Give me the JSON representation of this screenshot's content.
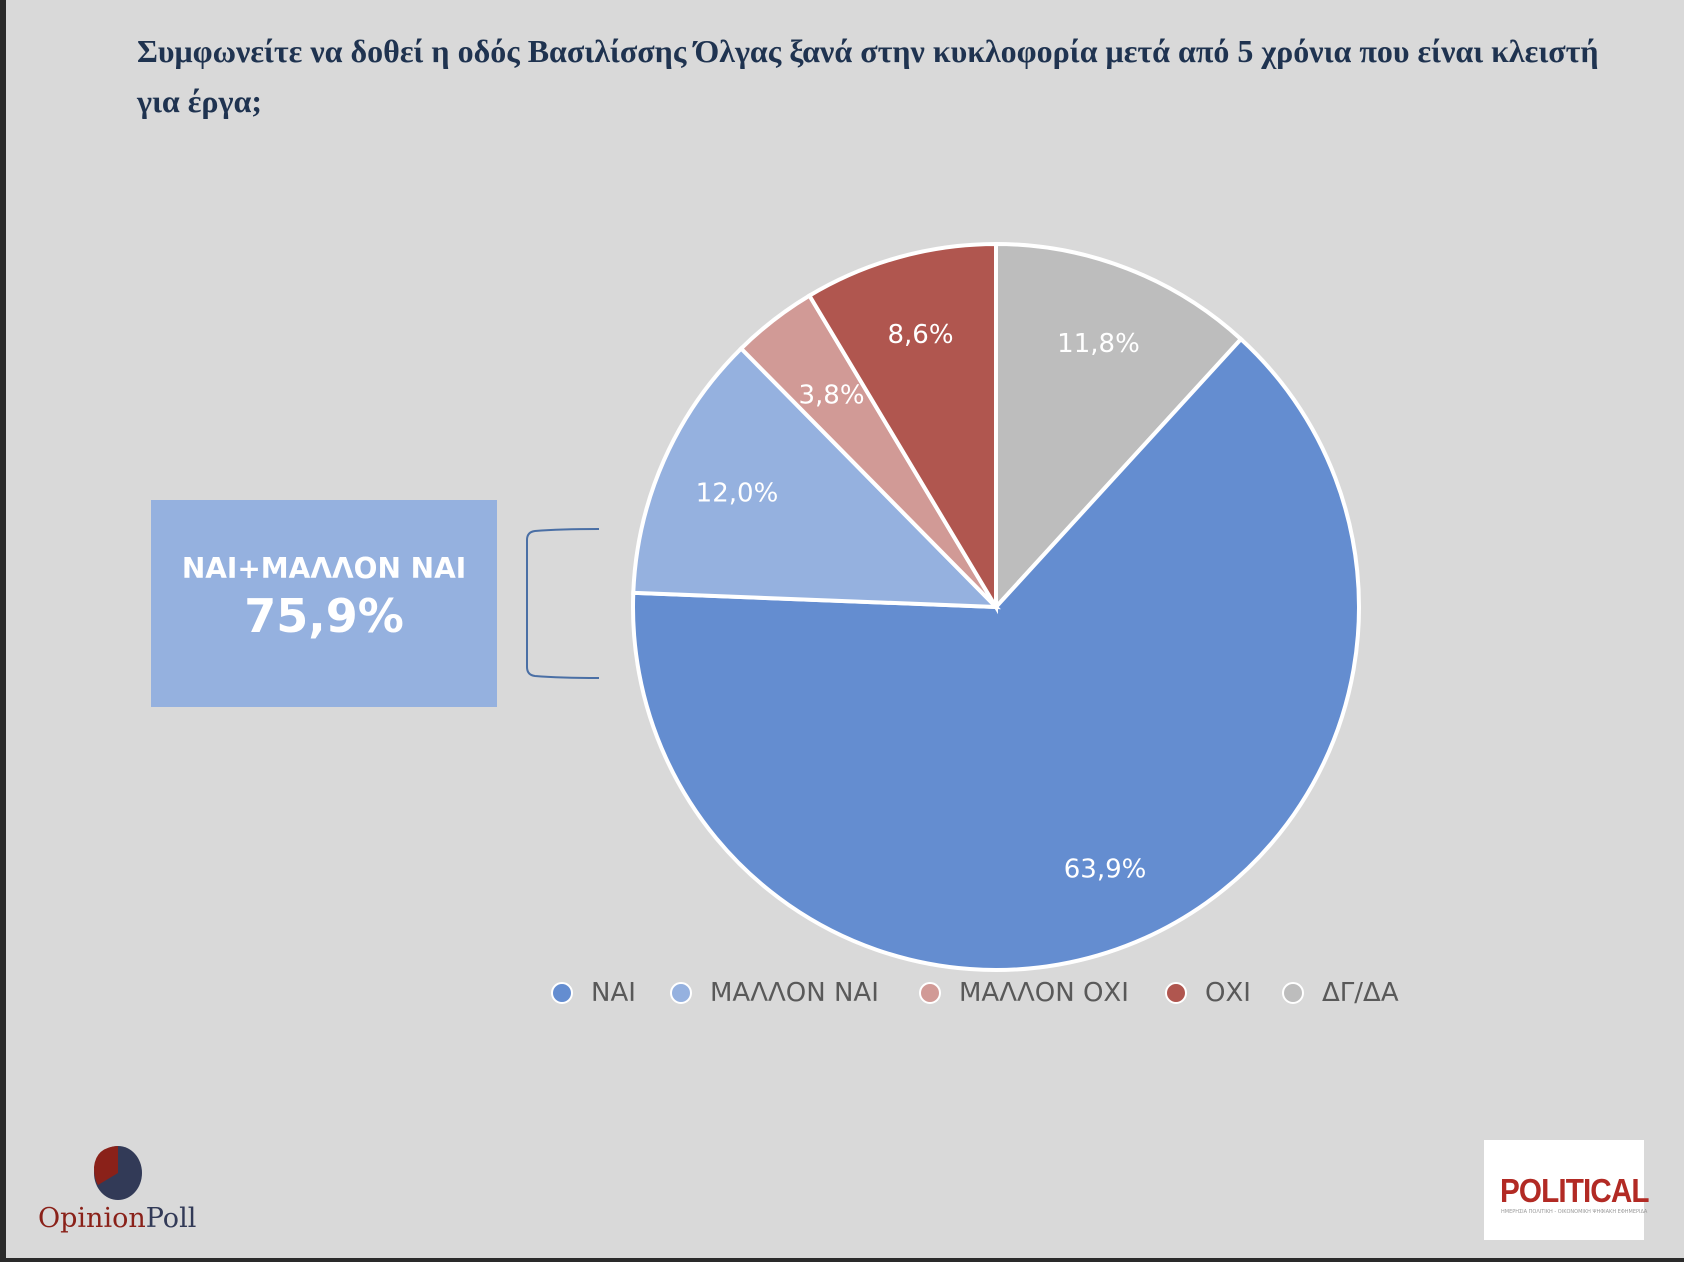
{
  "chart_data": {
    "type": "pie",
    "title": "Συμφωνείτε να δοθεί η οδός Βασιλίσσης Όλγας ξανά στην κυκλοφορία μετά από 5 χρόνια που είναι κλειστή για έργα;",
    "slices": [
      {
        "name": "ΔΓ/ΔΑ",
        "value": 11.8,
        "label": "11,8%",
        "color": "#bdbdbd"
      },
      {
        "name": "ΝΑΙ",
        "value": 63.9,
        "label": "63,9%",
        "color": "#648dd0"
      },
      {
        "name": "ΜΑΛΛΟΝ ΝΑΙ",
        "value": 12.0,
        "label": "12,0%",
        "color": "#95b1df"
      },
      {
        "name": "ΜΑΛΛΟΝ ΟΧΙ",
        "value": 3.8,
        "label": "3,8%",
        "color": "#d19a96"
      },
      {
        "name": "ΟΧΙ",
        "value": 8.6,
        "label": "8,6%",
        "color": "#b0564f"
      }
    ],
    "legend": [
      "ΝΑΙ",
      "ΜΑΛΛΟΝ ΝΑΙ",
      "ΜΑΛΛΟΝ ΟΧΙ",
      "ΟΧΙ",
      "ΔΓ/ΔΑ"
    ],
    "legend_position": "bottom",
    "annotation": {
      "label": "ΝΑΙ+ΜΑΛΛΟΝ ΝΑΙ",
      "value": "75,9%"
    }
  },
  "logos": {
    "left": "OpinionPoll",
    "left_a": "Opinion",
    "left_b": "Poll",
    "right": "POLITICAL",
    "right_sub": "ΗΜΕΡΗΣΙΑ ΠΟΛΙΤΙΚΗ - ΟΙΚΟΝΟΜΙΚΗ ΨΗΦΙΑΚΗ ΕΦΗΜΕΡΙΔΑ"
  }
}
